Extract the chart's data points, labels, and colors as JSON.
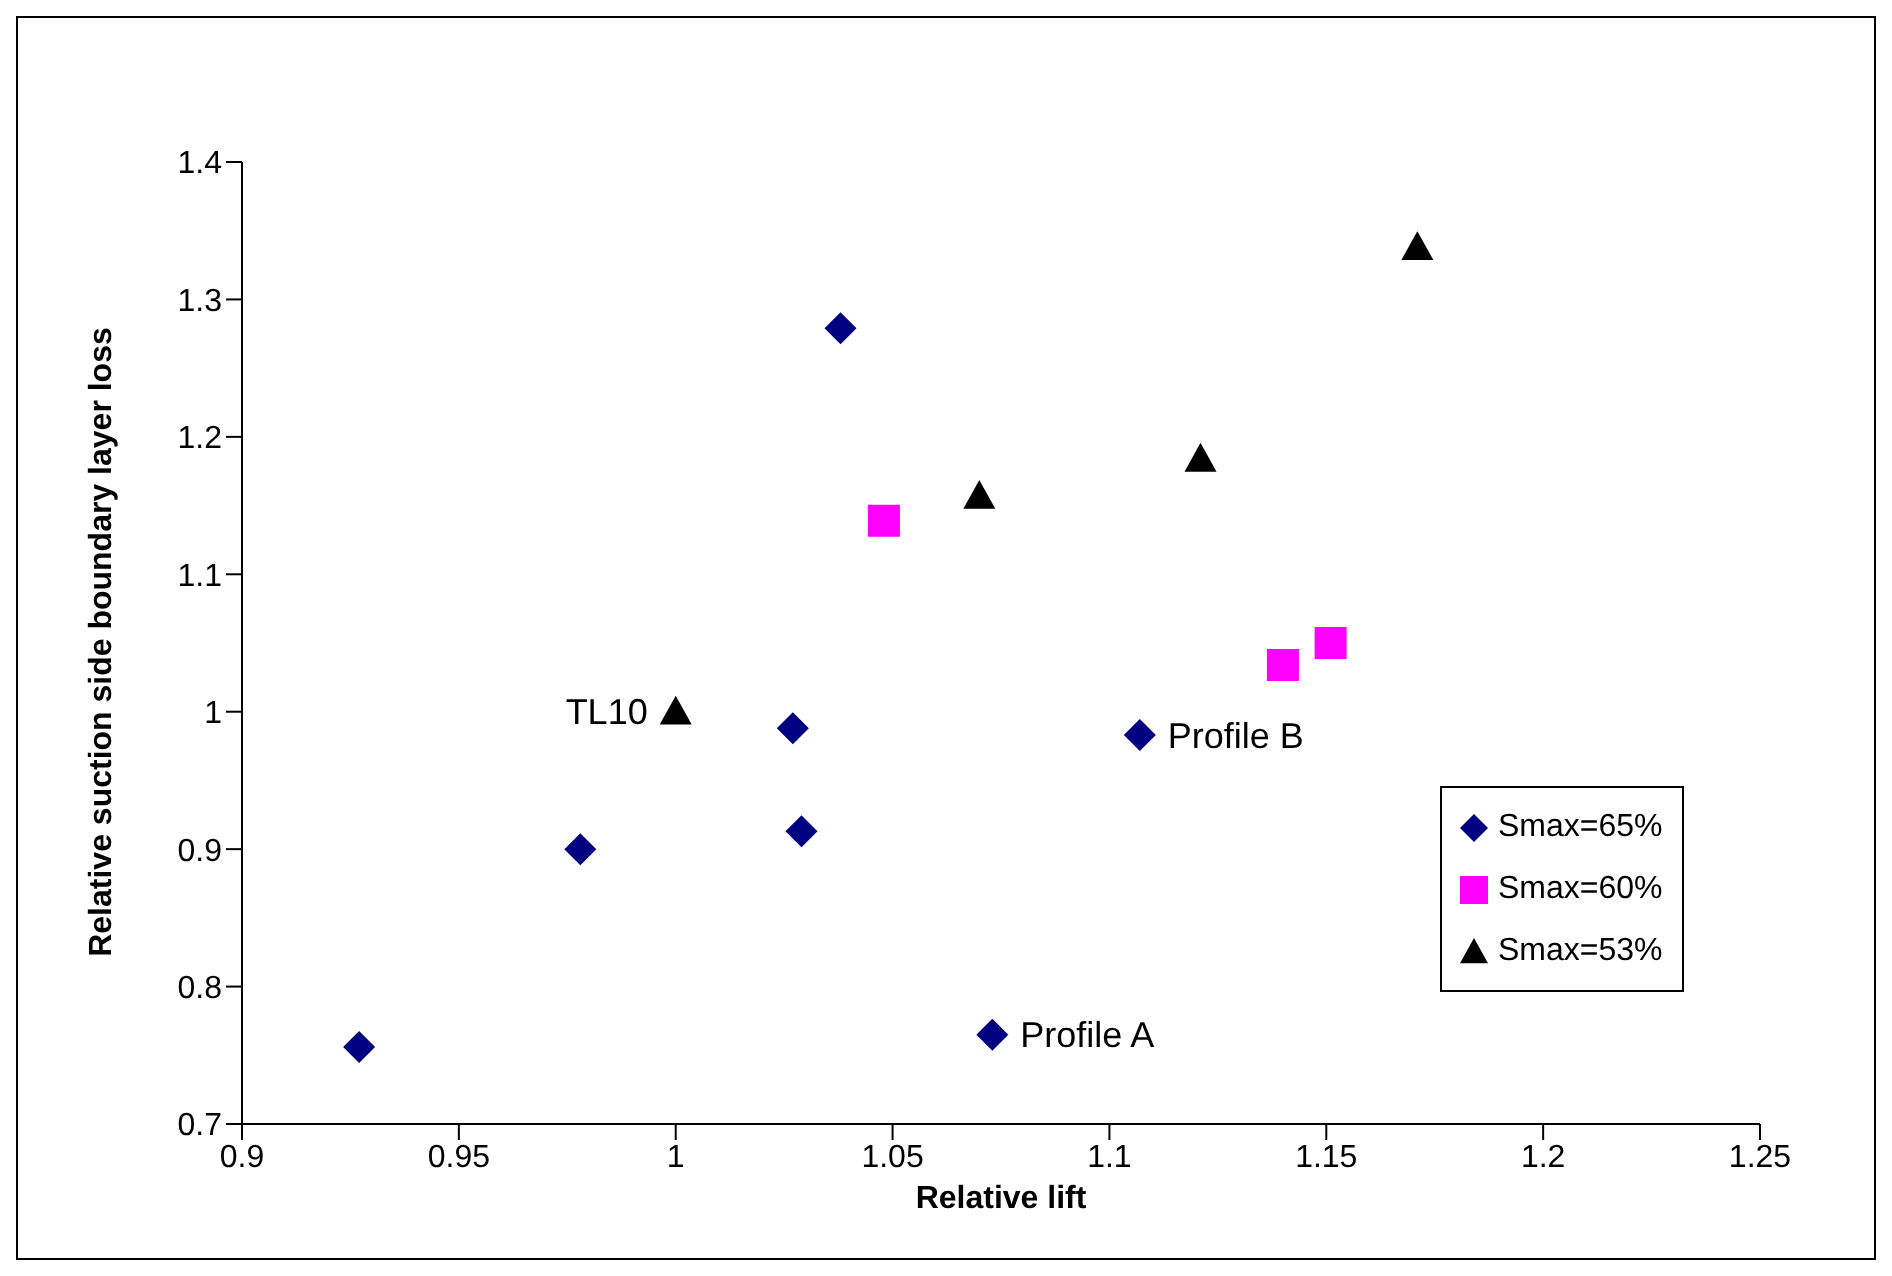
{
  "chart_data": {
    "type": "scatter",
    "xlabel": "Relative lift",
    "ylabel": "Relative suction side boundary layer loss",
    "xlim": [
      0.9,
      1.25
    ],
    "xticks": [
      0.9,
      0.95,
      1,
      1.05,
      1.1,
      1.15,
      1.2,
      1.25
    ],
    "ylim": [
      0.7,
      1.4
    ],
    "yticks": [
      0.7,
      0.8,
      0.9,
      1,
      1.1,
      1.2,
      1.3,
      1.4
    ],
    "grid": false,
    "legend": "right",
    "series": [
      {
        "name": "Smax=65%",
        "color": "#000080",
        "marker": "diamond",
        "x": [
          0.927,
          0.978,
          1.027,
          1.029,
          1.038,
          1.073,
          1.107
        ],
        "values": [
          0.756,
          0.9,
          0.988,
          0.913,
          1.279,
          0.765,
          0.983
        ]
      },
      {
        "name": "Smax=60%",
        "color": "#ff00ff",
        "marker": "square",
        "x": [
          1.048,
          1.14,
          1.151
        ],
        "values": [
          1.139,
          1.034,
          1.05
        ]
      },
      {
        "name": "Smax=53%",
        "color": "#000000",
        "marker": "triangle",
        "x": [
          1,
          1.07,
          1.121,
          1.171
        ],
        "values": [
          1,
          1.157,
          1.184,
          1.338
        ]
      }
    ],
    "annotations": [
      {
        "text": "TL10",
        "x": 1,
        "y": 1
      },
      {
        "text": "Profile A",
        "x": 1.073,
        "y": 0.765
      },
      {
        "text": "Profile B",
        "x": 1.107,
        "y": 0.983
      }
    ]
  }
}
